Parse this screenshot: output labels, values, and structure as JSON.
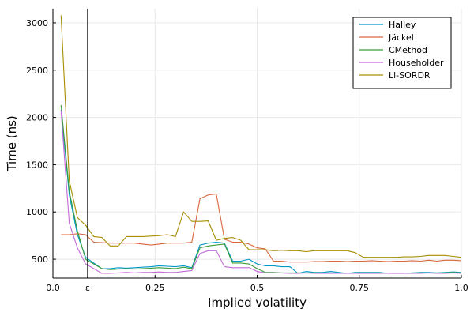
{
  "chart_data": {
    "type": "line",
    "title": "",
    "xlabel": "Implied volatility",
    "ylabel": "Time (ns)",
    "xlim": [
      0,
      1
    ],
    "ylim": [
      300,
      3150
    ],
    "grid": true,
    "legend_position": "top-right",
    "x_ticks": [
      {
        "value": 0.0,
        "label": "0.0"
      },
      {
        "value": 0.085,
        "label": "ε"
      },
      {
        "value": 0.25,
        "label": "0.25"
      },
      {
        "value": 0.5,
        "label": "0.5"
      },
      {
        "value": 0.75,
        "label": "0.75"
      },
      {
        "value": 1.0,
        "label": "1.0"
      }
    ],
    "y_ticks": [
      {
        "value": 500,
        "label": "500"
      },
      {
        "value": 1000,
        "label": "1000"
      },
      {
        "value": 1500,
        "label": "1500"
      },
      {
        "value": 2000,
        "label": "2000"
      },
      {
        "value": 2500,
        "label": "2500"
      },
      {
        "value": 3000,
        "label": "3000"
      }
    ],
    "annotations": [
      {
        "type": "vline",
        "x": 0.085,
        "label": "ε",
        "color": "#000000"
      }
    ],
    "x": [
      0.02,
      0.04,
      0.06,
      0.08,
      0.1,
      0.12,
      0.14,
      0.16,
      0.18,
      0.2,
      0.22,
      0.24,
      0.26,
      0.28,
      0.3,
      0.32,
      0.34,
      0.36,
      0.38,
      0.4,
      0.42,
      0.44,
      0.46,
      0.48,
      0.5,
      0.52,
      0.54,
      0.56,
      0.58,
      0.6,
      0.62,
      0.64,
      0.66,
      0.68,
      0.7,
      0.72,
      0.74,
      0.76,
      0.78,
      0.8,
      0.82,
      0.84,
      0.86,
      0.88,
      0.9,
      0.92,
      0.94,
      0.96,
      0.98,
      1.0
    ],
    "series": [
      {
        "name": "Halley",
        "color": "#0097c9",
        "values": [
          2080,
          1180,
          760,
          520,
          460,
          400,
          400,
          410,
          405,
          410,
          415,
          420,
          430,
          425,
          420,
          430,
          410,
          650,
          670,
          680,
          670,
          480,
          480,
          500,
          450,
          430,
          430,
          420,
          420,
          350,
          370,
          360,
          360,
          370,
          360,
          350,
          360,
          360,
          360,
          360,
          350,
          350,
          350,
          355,
          360,
          360,
          355,
          360,
          365,
          360
        ]
      },
      {
        "name": "Jäckel",
        "color": "#d9663e",
        "values": [
          760,
          760,
          770,
          760,
          680,
          675,
          670,
          670,
          670,
          670,
          660,
          650,
          660,
          670,
          670,
          670,
          680,
          1140,
          1180,
          1190,
          710,
          680,
          680,
          660,
          620,
          610,
          480,
          480,
          470,
          470,
          470,
          475,
          475,
          480,
          480,
          475,
          480,
          480,
          485,
          480,
          475,
          480,
          480,
          485,
          480,
          490,
          480,
          490,
          490,
          485
        ]
      },
      {
        "name": "CMethod",
        "color": "#3a9c3a",
        "values": [
          2130,
          1220,
          800,
          500,
          450,
          400,
          390,
          395,
          400,
          395,
          400,
          405,
          410,
          405,
          400,
          415,
          400,
          620,
          640,
          650,
          660,
          460,
          460,
          450,
          400,
          360,
          360,
          355,
          355,
          355,
          355,
          355,
          355,
          355,
          355,
          350,
          355,
          355,
          355,
          355,
          350,
          350,
          350,
          355,
          355,
          355,
          355,
          355,
          360,
          355
        ]
      },
      {
        "name": "Householder",
        "color": "#c26bd6",
        "values": [
          2070,
          880,
          620,
          450,
          400,
          350,
          350,
          355,
          360,
          355,
          360,
          360,
          365,
          360,
          360,
          370,
          380,
          560,
          590,
          590,
          420,
          410,
          410,
          410,
          370,
          355,
          355,
          355,
          350,
          350,
          355,
          350,
          350,
          350,
          350,
          350,
          350,
          350,
          350,
          350,
          350,
          350,
          350,
          350,
          350,
          355,
          350,
          350,
          355,
          350
        ]
      },
      {
        "name": "Li-SORDR",
        "color": "#a88d00",
        "values": [
          3080,
          1330,
          940,
          860,
          740,
          730,
          640,
          640,
          740,
          740,
          740,
          745,
          750,
          760,
          740,
          1000,
          900,
          900,
          905,
          700,
          720,
          730,
          700,
          600,
          600,
          600,
          590,
          595,
          590,
          590,
          580,
          590,
          590,
          590,
          590,
          590,
          570,
          520,
          520,
          520,
          520,
          520,
          525,
          525,
          530,
          540,
          540,
          540,
          530,
          520
        ]
      }
    ]
  }
}
